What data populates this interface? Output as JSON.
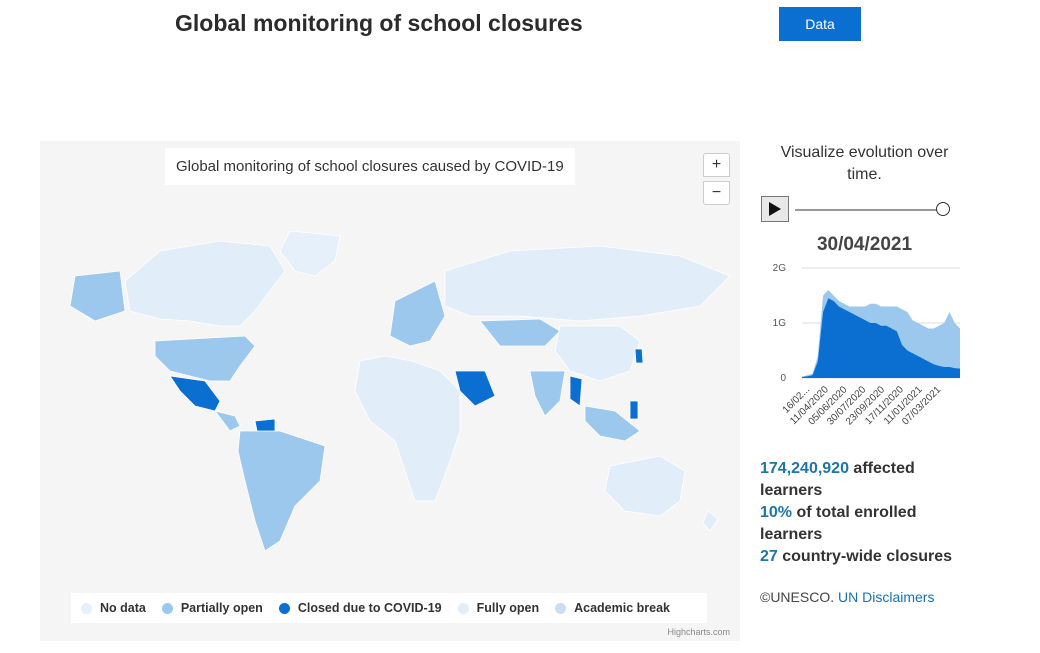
{
  "header": {
    "title": "Global monitoring of school closures",
    "data_button": "Data"
  },
  "map": {
    "title": "Global monitoring of school closures caused by COVID-19",
    "zoom_in": "+",
    "zoom_out": "−",
    "credit": "Highcharts.com",
    "legend": [
      {
        "label": "No data",
        "color": "#e5f0fa"
      },
      {
        "label": "Partially open",
        "color": "#9cc8ee"
      },
      {
        "label": "Closed due to COVID-19",
        "color": "#0a6fd1"
      },
      {
        "label": "Fully open",
        "color": "#e1edf8"
      },
      {
        "label": "Academic break",
        "color": "#c7def5"
      }
    ]
  },
  "sidebar": {
    "caption": "Visualize evolution over time.",
    "date": "30/04/2021",
    "stats": {
      "affected_number": "174,240,920",
      "affected_text_1": " affected",
      "affected_text_2": "learners",
      "percent": "10%",
      "percent_text_1": " of total enrolled",
      "percent_text_2": "learners",
      "closures_number": "27",
      "closures_text": " country-wide closures"
    },
    "copyright": "©UNESCO.",
    "disclaimer_link": "UN Disclaimers"
  },
  "chart_data": {
    "type": "area",
    "y_ticks": [
      "2G",
      "1G",
      "0"
    ],
    "ylim": [
      0,
      2
    ],
    "x_tick_labels": [
      "16/02...",
      "11/04/2020",
      "05/06/2020",
      "30/07/2020",
      "23/09/2020",
      "17/11/2020",
      "11/01/2021",
      "07/03/2021"
    ],
    "series": [
      {
        "color": "#0a6fd1",
        "values": [
          0.02,
          0.03,
          0.05,
          0.3,
          1.2,
          1.45,
          1.4,
          1.3,
          1.25,
          1.2,
          1.15,
          1.1,
          1.05,
          1.0,
          1.0,
          0.95,
          0.95,
          0.9,
          0.85,
          0.6,
          0.5,
          0.45,
          0.4,
          0.35,
          0.3,
          0.25,
          0.22,
          0.2,
          0.2,
          0.18,
          0.17
        ]
      },
      {
        "color": "#9cc8ee",
        "values": [
          0.02,
          0.05,
          0.08,
          0.4,
          1.5,
          1.6,
          1.5,
          1.4,
          1.35,
          1.3,
          1.3,
          1.3,
          1.3,
          1.35,
          1.35,
          1.3,
          1.3,
          1.3,
          1.3,
          1.25,
          1.2,
          1.05,
          1.0,
          0.95,
          0.9,
          0.9,
          0.95,
          1.0,
          1.2,
          1.0,
          0.9
        ]
      }
    ]
  }
}
